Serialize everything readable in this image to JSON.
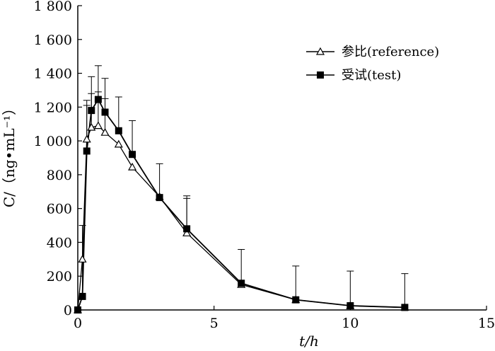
{
  "chart_data": {
    "type": "line",
    "xlabel": "t/h",
    "ylabel": "C/（ng•mL⁻¹）",
    "xlim": [
      0,
      15
    ],
    "ylim": [
      0,
      1800
    ],
    "x_ticks": [
      0,
      5,
      10,
      15
    ],
    "y_ticks": [
      0,
      200,
      400,
      600,
      800,
      1000,
      1200,
      1400,
      1600,
      1800
    ],
    "x_tick_labels": [
      "0",
      "5",
      "10",
      "15"
    ],
    "y_tick_labels": [
      "0",
      "200",
      "400",
      "600",
      "800",
      "1 000",
      "1 200",
      "1 400",
      "1 600",
      "1 800"
    ],
    "grid": false,
    "legend_position": "top-right",
    "series": [
      {
        "name": "参比(reference)",
        "marker": "open-triangle",
        "x": [
          0,
          0.17,
          0.33,
          0.5,
          0.75,
          1,
          1.5,
          2,
          3,
          4,
          6,
          8,
          10,
          12
        ],
        "y": [
          0,
          300,
          1010,
          1080,
          1090,
          1050,
          980,
          845,
          670,
          455,
          150,
          60,
          25,
          15
        ],
        "error": [
          0,
          0,
          200,
          200,
          200,
          200,
          0,
          0,
          0,
          220,
          0,
          0,
          0,
          0
        ]
      },
      {
        "name": "受试(test)",
        "marker": "filled-square",
        "x": [
          0,
          0.17,
          0.33,
          0.5,
          0.75,
          1,
          1.5,
          2,
          3,
          4,
          6,
          8,
          10,
          12
        ],
        "y": [
          0,
          80,
          940,
          1180,
          1245,
          1170,
          1060,
          920,
          665,
          480,
          158,
          60,
          25,
          15
        ],
        "error": [
          0,
          420,
          300,
          200,
          200,
          200,
          200,
          200,
          200,
          180,
          200,
          200,
          205,
          200
        ]
      }
    ]
  }
}
